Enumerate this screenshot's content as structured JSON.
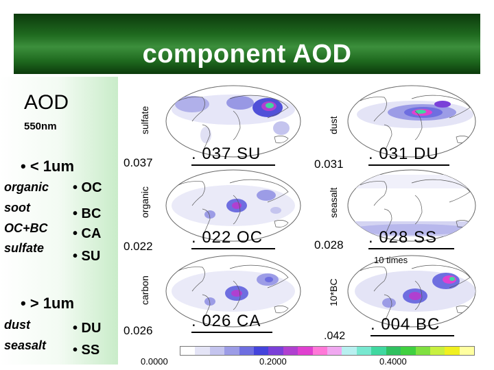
{
  "title": "component AOD",
  "left": {
    "aod": "AOD",
    "wavelength": "550nm",
    "fine_header": "• < 1um",
    "fine_rows": [
      {
        "name": "organic",
        "code": "• OC"
      },
      {
        "name": "soot",
        "code": "• BC"
      },
      {
        "name": "OC+BC",
        "code": "• CA"
      },
      {
        "name": "sulfate",
        "code": "• SU"
      }
    ],
    "coarse_header": "• > 1um",
    "coarse_rows": [
      {
        "name": "dust",
        "code": "• DU"
      },
      {
        "name": "seasalt",
        "code": "• SS"
      }
    ]
  },
  "maps": [
    {
      "label": "sulfate",
      "max": "0.037",
      "global": ". 037  SU"
    },
    {
      "label": "dust",
      "max": "0.031",
      "global": ". 031  DU"
    },
    {
      "label": "organic",
      "max": "0.022",
      "global": ". 022  OC"
    },
    {
      "label": "seasalt",
      "max": "0.028",
      "global": ". 028  SS"
    },
    {
      "label": "carbon",
      "max": "0.026",
      "global": ". 026  CA"
    },
    {
      "label": "10*BC",
      "max": ".042",
      "global": ". 004  BC",
      "note": "10 times"
    }
  ],
  "colorbar": {
    "ticks": [
      "0.0000",
      "0.2000",
      "0.4000"
    ],
    "colors": [
      "#ffffff",
      "#e4e4f6",
      "#c4c4ee",
      "#9c9ce6",
      "#6e6ee0",
      "#4444dc",
      "#7a40d8",
      "#b040d0",
      "#e040d0",
      "#ff78d8",
      "#f0a8f0",
      "#b8f0f0",
      "#78e8d0",
      "#40d8a0",
      "#30c060",
      "#40d040",
      "#80e040",
      "#c8f040",
      "#f0f020",
      "#ffffa0"
    ]
  }
}
